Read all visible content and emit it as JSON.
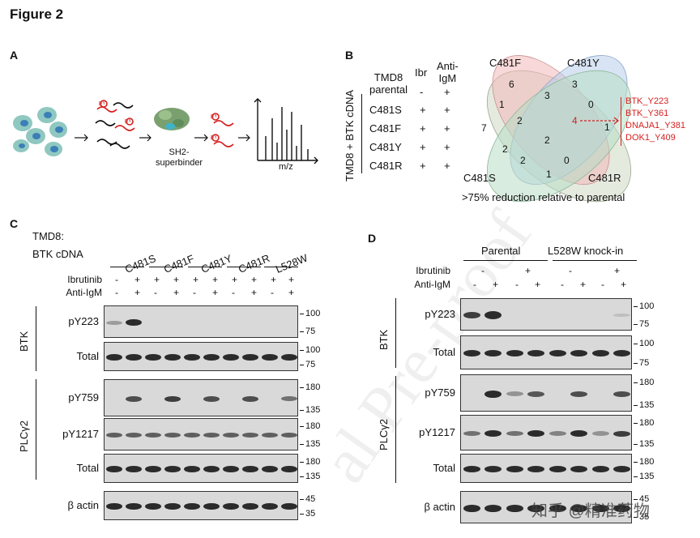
{
  "figure_title": "Figure 2",
  "panel_a": {
    "label": "A",
    "sh2_label_line1": "SH2-",
    "sh2_label_line2": "superbinder",
    "pY_label": "pY",
    "mz_label": "m/z",
    "colors": {
      "cells": "#8fc8c0",
      "nucleus": "#3b7fb8",
      "peptide": "#d62020",
      "protein": "#7aa070"
    }
  },
  "panel_b": {
    "label": "B",
    "table": {
      "row_group_label": "TMD8 + BTK cDNA",
      "header_col0_line1": "TMD8",
      "header_col0_line2": "parental",
      "header_ibr": "Ibr",
      "header_anti_line1": "Anti-",
      "header_anti_line2": "IgM",
      "parental_ibr": "-",
      "parental_anti": "+",
      "rows": [
        {
          "name": "C481S",
          "ibr": "+",
          "anti": "+"
        },
        {
          "name": "C481F",
          "ibr": "+",
          "anti": "+"
        },
        {
          "name": "C481Y",
          "ibr": "+",
          "anti": "+"
        },
        {
          "name": "C481R",
          "ibr": "+",
          "anti": "+"
        }
      ]
    },
    "venn": {
      "set_labels": {
        "C481F": "C481F",
        "C481Y": "C481Y",
        "C481S": "C481S",
        "C481R": "C481R"
      },
      "counts": [
        "6",
        "3",
        "1",
        "3",
        "0",
        "7",
        "2",
        "4",
        "1",
        "2",
        "2",
        "2",
        "0",
        "1"
      ],
      "highlight_count": "4",
      "highlight_sites": [
        "BTK_Y223",
        "BTK_Y361",
        "DNAJA1_Y381",
        "DOK1_Y409"
      ],
      "caption": ">75% reduction relative to parental",
      "colors": {
        "C481F": "#f2b8b8",
        "C481Y": "#b8cdea",
        "C481S": "#cfd8c4",
        "C481R": "#b8dcc4"
      }
    }
  },
  "panel_c": {
    "label": "C",
    "cell_line": "TMD8:",
    "cdna_label": "BTK cDNA",
    "groups": [
      "C481S",
      "C481F",
      "C481Y",
      "C481R",
      "L528W"
    ],
    "ibrutinib_label": "Ibrutinib",
    "anti_igm_label": "Anti-IgM",
    "ibrutinib_signs": [
      "-",
      "+",
      "+",
      "+",
      "+",
      "+",
      "+",
      "+",
      "+",
      "+"
    ],
    "anti_signs": [
      "-",
      "+",
      "-",
      "+",
      "-",
      "+",
      "-",
      "+",
      "-",
      "+"
    ],
    "blot_rows": [
      {
        "name": "pY223",
        "markers": [
          "100",
          "75"
        ]
      },
      {
        "name": "Total",
        "markers": [
          "100",
          "75"
        ]
      },
      {
        "name": "pY759",
        "markers": [
          "180",
          "135"
        ]
      },
      {
        "name": "pY1217",
        "markers": [
          "180",
          "135"
        ]
      },
      {
        "name": "Total",
        "markers": [
          "180",
          "135"
        ]
      },
      {
        "name": "β actin",
        "markers": [
          "45",
          "35"
        ]
      }
    ],
    "group_labels": {
      "btk": "BTK",
      "plc": "PLCγ2"
    }
  },
  "panel_d": {
    "label": "D",
    "groups": [
      "Parental",
      "L528W knock-in"
    ],
    "ibrutinib_label": "Ibrutinib",
    "anti_igm_label": "Anti-IgM",
    "ibrutinib_signs": [
      "-",
      "+",
      "-",
      "+"
    ],
    "anti_signs": [
      "-",
      "+",
      "-",
      "+",
      "-",
      "+",
      "-",
      "+"
    ],
    "blot_rows": [
      {
        "name": "pY223",
        "markers": [
          "100",
          "75"
        ]
      },
      {
        "name": "Total",
        "markers": [
          "100",
          "75"
        ]
      },
      {
        "name": "pY759",
        "markers": [
          "180",
          "135"
        ]
      },
      {
        "name": "pY1217",
        "markers": [
          "180",
          "135"
        ]
      },
      {
        "name": "Total",
        "markers": [
          "180",
          "135"
        ]
      },
      {
        "name": "β actin",
        "markers": [
          "45",
          "35"
        ]
      }
    ],
    "group_labels": {
      "btk": "BTK",
      "plc": "PLCγ2"
    }
  },
  "overlays": {
    "watermark": "al Pre-proof",
    "zhihu_credit": "知乎 @精准药物"
  }
}
